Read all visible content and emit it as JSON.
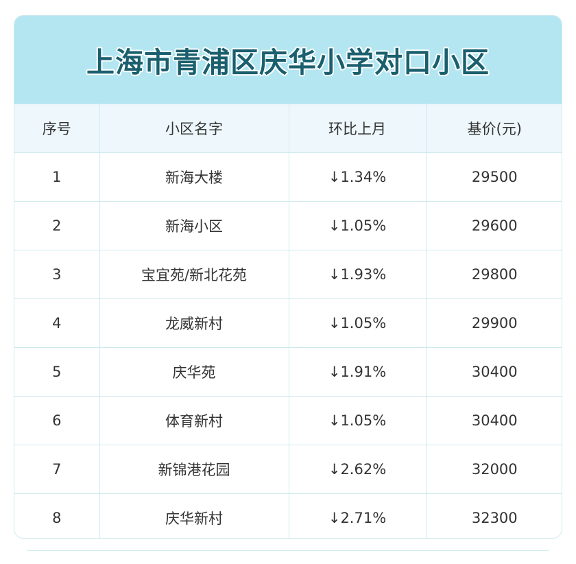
{
  "title": "上海市青浦区庆华小学对口小区",
  "headers": [
    "序号",
    "小区名字",
    "环比上月",
    "基价(元)"
  ],
  "rows": [
    [
      "1",
      "新海大楼",
      "↓1.34%",
      "29500"
    ],
    [
      "2",
      "新海小区",
      "↓1.05%",
      "29600"
    ],
    [
      "3",
      "宝宜苑/新北花苑",
      "↓1.93%",
      "29800"
    ],
    [
      "4",
      "龙威新村",
      "↓1.05%",
      "29900"
    ],
    [
      "5",
      "庆华苑",
      "↓1.91%",
      "30400"
    ],
    [
      "6",
      "体育新村",
      "↓1.05%",
      "30400"
    ],
    [
      "7",
      "新锦港花园",
      "↓2.62%",
      "32000"
    ],
    [
      "8",
      "庆华新村",
      "↓2.71%",
      "32300"
    ]
  ],
  "colors": {
    "title_band": "#b3e6f1",
    "title_text": "#1a5f6e",
    "header_bg": "#eef8fc",
    "border": "#cfe9ef"
  }
}
